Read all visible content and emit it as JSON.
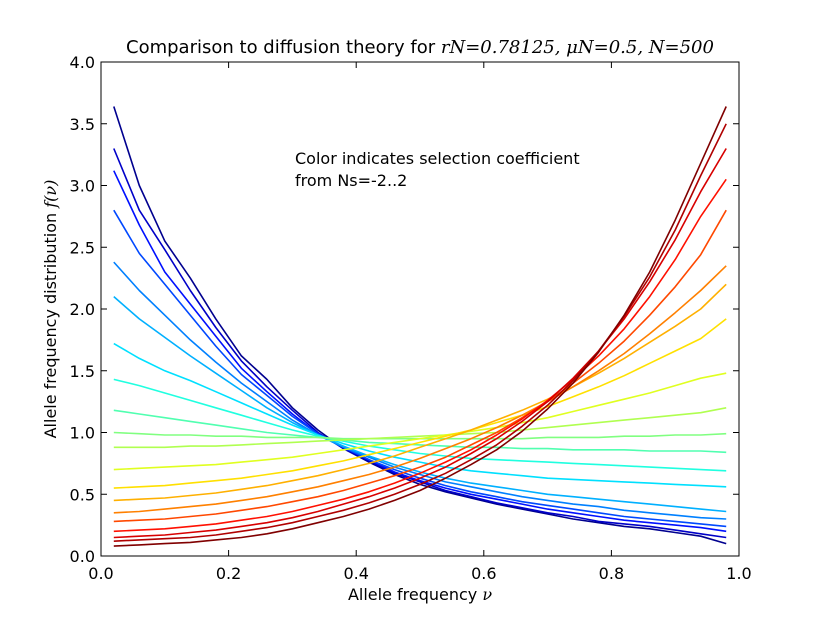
{
  "chart_data": {
    "type": "line",
    "title": "Comparison to diffusion theory for rN=0.78125, μN=0.5, N=500",
    "title_plain": "Comparison to diffusion theory for ",
    "title_math": "rN=0.78125, μN=0.5, N=500",
    "xlabel_plain": "Allele frequency ",
    "xlabel_math": "ν",
    "ylabel_plain": "Allele frequency distribution ",
    "ylabel_math": "f(ν)",
    "xlim": [
      0.0,
      1.0
    ],
    "ylim": [
      0.0,
      4.0
    ],
    "x_ticks": [
      0.0,
      0.2,
      0.4,
      0.6,
      0.8,
      1.0
    ],
    "x_tick_labels": [
      "0.0",
      "0.2",
      "0.4",
      "0.6",
      "0.8",
      "1.0"
    ],
    "y_ticks": [
      0.0,
      0.5,
      1.0,
      1.5,
      2.0,
      2.5,
      3.0,
      3.5,
      4.0
    ],
    "y_tick_labels": [
      "0.0",
      "0.5",
      "1.0",
      "1.5",
      "2.0",
      "2.5",
      "3.0",
      "3.5",
      "4.0"
    ],
    "annotation": [
      "Color indicates selection coefficient",
      "from Ns=-2..2"
    ],
    "colormap": "jet",
    "selection_range": [
      -2,
      2
    ],
    "x": [
      0.02,
      0.06,
      0.1,
      0.14,
      0.18,
      0.22,
      0.26,
      0.3,
      0.34,
      0.38,
      0.42,
      0.46,
      0.5,
      0.54,
      0.58,
      0.62,
      0.66,
      0.7,
      0.74,
      0.78,
      0.82,
      0.86,
      0.9,
      0.94,
      0.98
    ],
    "series": [
      {
        "name": "Ns=-2.0",
        "color": "#00008f",
        "values": [
          3.64,
          3.0,
          2.55,
          2.25,
          1.92,
          1.62,
          1.43,
          1.2,
          1.02,
          0.87,
          0.76,
          0.66,
          0.58,
          0.52,
          0.47,
          0.42,
          0.38,
          0.34,
          0.3,
          0.27,
          0.24,
          0.22,
          0.19,
          0.16,
          0.1
        ]
      },
      {
        "name": "Ns=-1.8",
        "color": "#0000c8",
        "values": [
          3.3,
          2.8,
          2.48,
          2.15,
          1.85,
          1.58,
          1.37,
          1.18,
          1.0,
          0.87,
          0.77,
          0.67,
          0.6,
          0.53,
          0.48,
          0.43,
          0.39,
          0.35,
          0.32,
          0.28,
          0.26,
          0.24,
          0.21,
          0.18,
          0.15
        ]
      },
      {
        "name": "Ns=-1.6",
        "color": "#0010ff",
        "values": [
          3.12,
          2.68,
          2.3,
          2.04,
          1.78,
          1.52,
          1.33,
          1.15,
          0.99,
          0.88,
          0.78,
          0.68,
          0.61,
          0.55,
          0.5,
          0.46,
          0.42,
          0.38,
          0.35,
          0.32,
          0.29,
          0.27,
          0.25,
          0.23,
          0.2
        ]
      },
      {
        "name": "Ns=-1.4",
        "color": "#0048ff",
        "values": [
          2.8,
          2.45,
          2.2,
          1.95,
          1.7,
          1.47,
          1.3,
          1.13,
          0.99,
          0.88,
          0.78,
          0.7,
          0.63,
          0.57,
          0.52,
          0.48,
          0.44,
          0.41,
          0.38,
          0.35,
          0.32,
          0.3,
          0.28,
          0.26,
          0.24
        ]
      },
      {
        "name": "Ns=-1.2",
        "color": "#0080ff",
        "values": [
          2.38,
          2.15,
          1.95,
          1.75,
          1.57,
          1.4,
          1.25,
          1.1,
          0.98,
          0.88,
          0.8,
          0.72,
          0.66,
          0.6,
          0.56,
          0.52,
          0.48,
          0.45,
          0.42,
          0.4,
          0.37,
          0.35,
          0.33,
          0.31,
          0.3
        ]
      },
      {
        "name": "Ns=-1.0",
        "color": "#00b0ff",
        "values": [
          2.1,
          1.92,
          1.77,
          1.62,
          1.48,
          1.34,
          1.2,
          1.08,
          0.98,
          0.89,
          0.81,
          0.74,
          0.68,
          0.63,
          0.59,
          0.56,
          0.53,
          0.5,
          0.48,
          0.46,
          0.44,
          0.42,
          0.4,
          0.38,
          0.36
        ]
      },
      {
        "name": "Ns=-0.8",
        "color": "#00e0ff",
        "values": [
          1.72,
          1.6,
          1.5,
          1.42,
          1.33,
          1.24,
          1.15,
          1.06,
          0.98,
          0.91,
          0.85,
          0.8,
          0.76,
          0.72,
          0.69,
          0.67,
          0.65,
          0.63,
          0.62,
          0.61,
          0.6,
          0.59,
          0.58,
          0.57,
          0.56
        ]
      },
      {
        "name": "Ns=-0.6",
        "color": "#20ffe0",
        "values": [
          1.43,
          1.38,
          1.32,
          1.26,
          1.2,
          1.14,
          1.08,
          1.02,
          0.97,
          0.93,
          0.89,
          0.86,
          0.83,
          0.81,
          0.79,
          0.78,
          0.77,
          0.76,
          0.75,
          0.74,
          0.73,
          0.72,
          0.71,
          0.7,
          0.69
        ]
      },
      {
        "name": "Ns=-0.4",
        "color": "#50ffb0",
        "values": [
          1.18,
          1.15,
          1.12,
          1.09,
          1.06,
          1.03,
          1.0,
          0.98,
          0.96,
          0.94,
          0.92,
          0.91,
          0.9,
          0.89,
          0.88,
          0.88,
          0.87,
          0.87,
          0.86,
          0.86,
          0.86,
          0.85,
          0.85,
          0.85,
          0.84
        ]
      },
      {
        "name": "Ns=-0.2",
        "color": "#80ff80",
        "values": [
          1.0,
          0.99,
          0.98,
          0.98,
          0.97,
          0.97,
          0.96,
          0.96,
          0.96,
          0.95,
          0.95,
          0.95,
          0.95,
          0.95,
          0.95,
          0.95,
          0.95,
          0.96,
          0.96,
          0.96,
          0.97,
          0.97,
          0.98,
          0.98,
          0.99
        ]
      },
      {
        "name": "Ns=0.0",
        "color": "#b0ff50",
        "values": [
          0.88,
          0.88,
          0.88,
          0.89,
          0.89,
          0.9,
          0.91,
          0.92,
          0.93,
          0.94,
          0.95,
          0.96,
          0.97,
          0.98,
          0.99,
          1.0,
          1.02,
          1.04,
          1.06,
          1.08,
          1.1,
          1.12,
          1.14,
          1.16,
          1.2
        ]
      },
      {
        "name": "Ns=0.2",
        "color": "#e0ff20",
        "values": [
          0.7,
          0.71,
          0.72,
          0.73,
          0.74,
          0.76,
          0.78,
          0.8,
          0.83,
          0.86,
          0.89,
          0.92,
          0.95,
          0.98,
          1.01,
          1.04,
          1.08,
          1.12,
          1.17,
          1.22,
          1.27,
          1.32,
          1.38,
          1.44,
          1.48
        ]
      },
      {
        "name": "Ns=0.4",
        "color": "#ffe000",
        "values": [
          0.55,
          0.56,
          0.57,
          0.59,
          0.61,
          0.63,
          0.66,
          0.69,
          0.73,
          0.77,
          0.82,
          0.87,
          0.92,
          0.97,
          1.02,
          1.08,
          1.14,
          1.21,
          1.29,
          1.37,
          1.46,
          1.56,
          1.66,
          1.76,
          1.92
        ]
      },
      {
        "name": "Ns=0.6",
        "color": "#ffb000",
        "values": [
          0.45,
          0.46,
          0.47,
          0.49,
          0.51,
          0.54,
          0.57,
          0.61,
          0.65,
          0.7,
          0.75,
          0.81,
          0.88,
          0.95,
          1.02,
          1.1,
          1.18,
          1.27,
          1.37,
          1.48,
          1.6,
          1.73,
          1.86,
          2.0,
          2.2
        ]
      },
      {
        "name": "Ns=0.8",
        "color": "#ff8000",
        "values": [
          0.35,
          0.36,
          0.38,
          0.4,
          0.42,
          0.45,
          0.48,
          0.52,
          0.56,
          0.61,
          0.66,
          0.72,
          0.79,
          0.87,
          0.95,
          1.04,
          1.14,
          1.25,
          1.37,
          1.5,
          1.64,
          1.8,
          1.97,
          2.15,
          2.35
        ]
      },
      {
        "name": "Ns=1.0",
        "color": "#ff4800",
        "values": [
          0.28,
          0.29,
          0.3,
          0.32,
          0.34,
          0.37,
          0.4,
          0.44,
          0.48,
          0.53,
          0.59,
          0.65,
          0.72,
          0.8,
          0.9,
          1.0,
          1.12,
          1.25,
          1.4,
          1.56,
          1.74,
          1.95,
          2.18,
          2.44,
          2.8
        ]
      },
      {
        "name": "Ns=1.2",
        "color": "#ff1000",
        "values": [
          0.2,
          0.21,
          0.22,
          0.24,
          0.26,
          0.29,
          0.32,
          0.36,
          0.41,
          0.46,
          0.52,
          0.59,
          0.67,
          0.76,
          0.86,
          0.98,
          1.11,
          1.26,
          1.43,
          1.62,
          1.84,
          2.1,
          2.4,
          2.75,
          3.05
        ]
      },
      {
        "name": "Ns=1.4",
        "color": "#d80000",
        "values": [
          0.15,
          0.16,
          0.17,
          0.19,
          0.21,
          0.24,
          0.27,
          0.31,
          0.36,
          0.42,
          0.48,
          0.55,
          0.63,
          0.72,
          0.83,
          0.95,
          1.09,
          1.25,
          1.44,
          1.66,
          1.92,
          2.22,
          2.56,
          2.95,
          3.3
        ]
      },
      {
        "name": "Ns=1.6",
        "color": "#b00000",
        "values": [
          0.12,
          0.13,
          0.14,
          0.15,
          0.17,
          0.2,
          0.23,
          0.27,
          0.32,
          0.37,
          0.43,
          0.5,
          0.58,
          0.67,
          0.78,
          0.9,
          1.05,
          1.22,
          1.42,
          1.66,
          1.94,
          2.26,
          2.64,
          3.08,
          3.5
        ]
      },
      {
        "name": "Ns=1.8",
        "color": "#800000",
        "values": [
          0.08,
          0.09,
          0.1,
          0.11,
          0.13,
          0.15,
          0.18,
          0.22,
          0.27,
          0.32,
          0.38,
          0.45,
          0.53,
          0.63,
          0.74,
          0.86,
          1.01,
          1.19,
          1.4,
          1.65,
          1.95,
          2.3,
          2.72,
          3.18,
          3.64
        ]
      }
    ]
  }
}
